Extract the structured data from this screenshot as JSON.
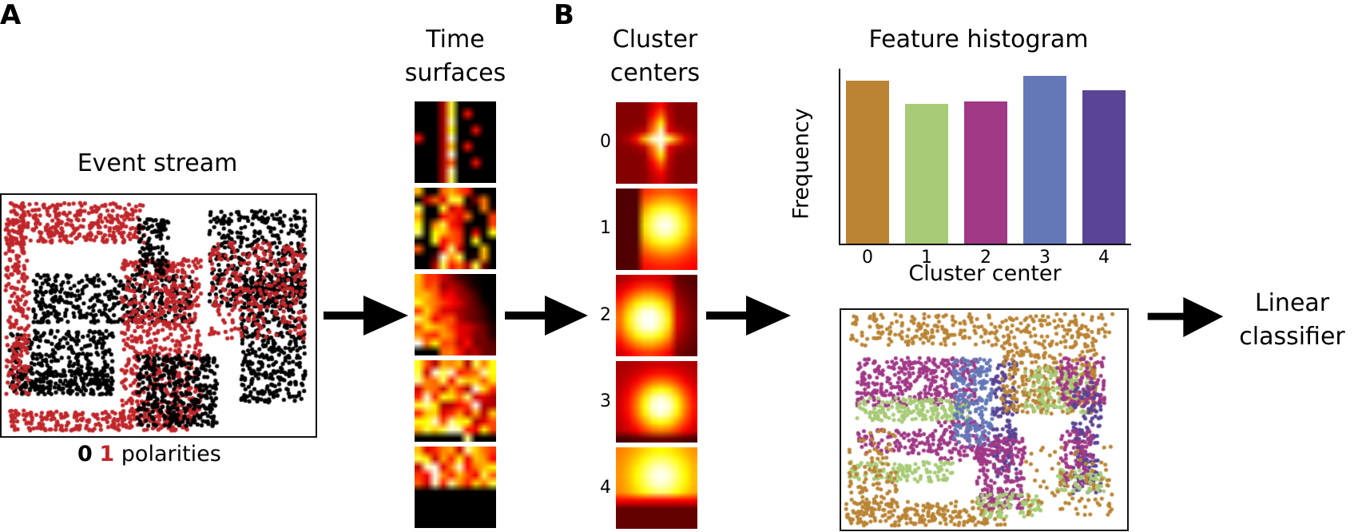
{
  "panels": {
    "a_label": "A",
    "b_label": "B"
  },
  "event_stream": {
    "title": "Event stream",
    "legend": {
      "zero": "0",
      "one": "1",
      "suffix": "polarities"
    },
    "colors": {
      "polarity_0": "#000000",
      "polarity_1": "#c0262a"
    }
  },
  "time_surfaces": {
    "title_line1": "Time",
    "title_line2": "surfaces",
    "count": 5
  },
  "cluster_centers": {
    "title_line1": "Cluster",
    "title_line2": "centers",
    "labels": [
      "0",
      "1",
      "2",
      "3",
      "4"
    ]
  },
  "feature_histogram": {
    "title": "Feature histogram",
    "ylabel": "Frequency",
    "xlabel": "Cluster center"
  },
  "classifier": {
    "line1": "Linear",
    "line2": "classifier"
  },
  "chart_data": {
    "type": "bar",
    "title": "Feature histogram",
    "xlabel": "Cluster center",
    "ylabel": "Frequency",
    "categories": [
      "0",
      "1",
      "2",
      "3",
      "4"
    ],
    "values": [
      210,
      180,
      183,
      216,
      197
    ],
    "colors": [
      "#BA8434",
      "#A7CB76",
      "#A03886",
      "#6478B8",
      "#5A4495"
    ],
    "ylim": [
      0,
      225
    ],
    "grid": false,
    "yticks_shown": false
  }
}
